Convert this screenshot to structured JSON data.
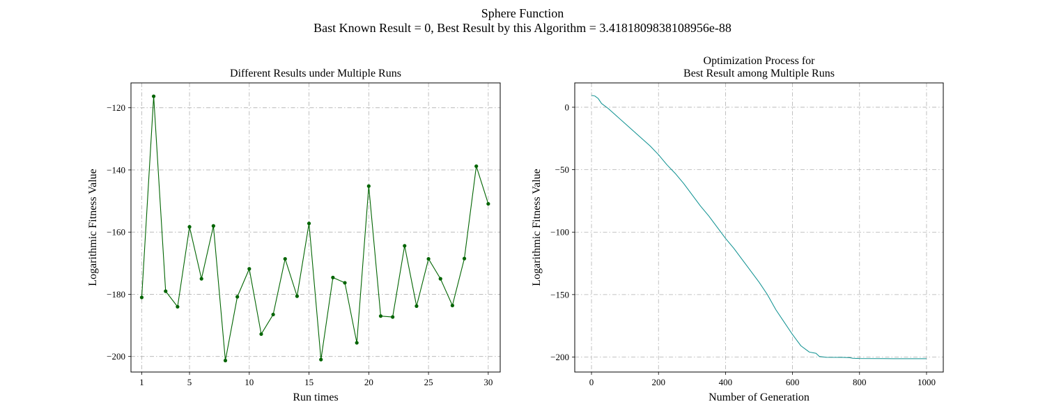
{
  "figure": {
    "title_line1": "Sphere Function",
    "title_line2": "Bast Known Result = 0, Best Result by this Algorithm = 3.4181809838108956e-88"
  },
  "colors": {
    "left_series": "#006400",
    "right_series": "#0a8f8f",
    "grid": "#b0b0b0"
  },
  "chart_data": [
    {
      "type": "line",
      "title": "Different Results under Multiple Runs",
      "xlabel": "Run times",
      "ylabel": "Logarithmic Fitness Value",
      "xlim": [
        0.1,
        31.0
      ],
      "ylim": [
        -205,
        -112
      ],
      "xticks": [
        1,
        5,
        10,
        15,
        20,
        25,
        30
      ],
      "yticks": [
        -200,
        -180,
        -160,
        -140,
        -120
      ],
      "grid": true,
      "markers": true,
      "x": [
        1,
        2,
        3,
        4,
        5,
        6,
        7,
        8,
        9,
        10,
        11,
        12,
        13,
        14,
        15,
        16,
        17,
        18,
        19,
        20,
        21,
        22,
        23,
        24,
        25,
        26,
        27,
        28,
        29,
        30
      ],
      "values": [
        -181.0,
        -116.3,
        -179.0,
        -184.0,
        -158.3,
        -175.0,
        -158.0,
        -201.3,
        -180.8,
        -171.8,
        -192.8,
        -186.5,
        -168.6,
        -180.6,
        -157.2,
        -201.0,
        -174.6,
        -176.3,
        -195.6,
        -145.2,
        -187.0,
        -187.3,
        -164.4,
        -183.8,
        -168.6,
        -175.0,
        -183.6,
        -168.5,
        -138.8,
        -150.9
      ]
    },
    {
      "type": "line",
      "title": "Optimization Process for\nBest Result among Multiple Runs",
      "xlabel": "Number of Generation",
      "ylabel": "Logarithmic Fitness Value",
      "xlim": [
        -50,
        1050
      ],
      "ylim": [
        -212,
        19.5
      ],
      "xticks": [
        0,
        200,
        400,
        600,
        800,
        1000
      ],
      "yticks": [
        -200,
        -150,
        -100,
        -50,
        0
      ],
      "grid": true,
      "markers": false,
      "x": [
        0,
        10,
        20,
        30,
        50,
        75,
        100,
        125,
        150,
        175,
        200,
        225,
        250,
        275,
        300,
        325,
        350,
        375,
        400,
        425,
        450,
        475,
        500,
        525,
        550,
        575,
        600,
        625,
        650,
        660,
        670,
        680,
        700,
        750,
        770,
        780,
        800,
        900,
        1000
      ],
      "values": [
        9.5,
        9.0,
        7.0,
        3.0,
        -1.0,
        -7.0,
        -13.0,
        -19.0,
        -25.0,
        -31.0,
        -38.0,
        -46.0,
        -53.0,
        -61.0,
        -70.0,
        -79.0,
        -87.0,
        -96.0,
        -105.0,
        -113.0,
        -122.0,
        -131.0,
        -140.0,
        -150.0,
        -162.0,
        -172.0,
        -182.0,
        -191.0,
        -196.0,
        -196.5,
        -197.0,
        -199.5,
        -200.2,
        -200.3,
        -200.5,
        -201.0,
        -201.2,
        -201.3,
        -201.3
      ]
    }
  ]
}
